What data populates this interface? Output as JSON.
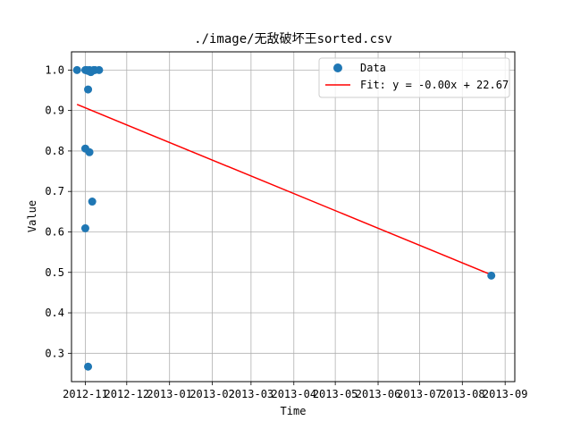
{
  "chart_data": {
    "type": "scatter",
    "title": "./image/无敌破坏王sorted.csv",
    "xlabel": "Time",
    "ylabel": "Value",
    "grid": true,
    "legend_position": "top-right",
    "xlim": [
      "2012-10-22",
      "2013-09-08"
    ],
    "ylim": [
      0.23,
      1.045
    ],
    "x_ticks": [
      "2012-11",
      "2012-12",
      "2013-01",
      "2013-02",
      "2013-03",
      "2013-04",
      "2013-05",
      "2013-06",
      "2013-07",
      "2013-08",
      "2013-09"
    ],
    "y_ticks": [
      "0.3",
      "0.4",
      "0.5",
      "0.6",
      "0.7",
      "0.8",
      "0.9",
      "1.0"
    ],
    "series": [
      {
        "name": "Data",
        "kind": "scatter",
        "color": "#1f77b4",
        "points": [
          {
            "x": "2012-10-26",
            "y": 1.0
          },
          {
            "x": "2012-11-01",
            "y": 1.0
          },
          {
            "x": "2012-11-02",
            "y": 1.0
          },
          {
            "x": "2012-11-03",
            "y": 0.998
          },
          {
            "x": "2012-11-04",
            "y": 1.0
          },
          {
            "x": "2012-11-05",
            "y": 0.995
          },
          {
            "x": "2012-11-06",
            "y": 0.998
          },
          {
            "x": "2012-11-07",
            "y": 1.0
          },
          {
            "x": "2012-11-08",
            "y": 1.0
          },
          {
            "x": "2012-11-11",
            "y": 1.0
          },
          {
            "x": "2012-11-03",
            "y": 0.952
          },
          {
            "x": "2012-11-01",
            "y": 0.806
          },
          {
            "x": "2012-11-04",
            "y": 0.797
          },
          {
            "x": "2012-11-06",
            "y": 0.675
          },
          {
            "x": "2012-11-01",
            "y": 0.609
          },
          {
            "x": "2012-11-03",
            "y": 0.267
          },
          {
            "x": "2013-08-22",
            "y": 0.492
          }
        ]
      },
      {
        "name": "Fit: y = -0.00x + 22.67",
        "kind": "line",
        "color": "#ff0000",
        "points": [
          {
            "x": "2012-10-26",
            "y": 0.915
          },
          {
            "x": "2013-08-22",
            "y": 0.494
          }
        ]
      }
    ]
  }
}
